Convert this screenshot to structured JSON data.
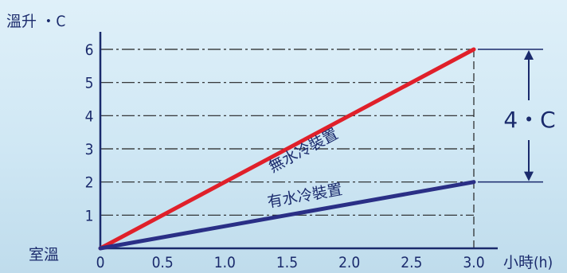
{
  "chart_data": {
    "type": "line",
    "ylabel": "溫升 ・C",
    "xlabel": "小時(h)",
    "y_zero_label": "室溫",
    "x_ticks": [
      "0",
      "0.5",
      "1.0",
      "1.5",
      "2.0",
      "2.5",
      "3.0"
    ],
    "y_ticks": [
      "1",
      "2",
      "3",
      "4",
      "5",
      "6"
    ],
    "xlim": [
      0,
      3
    ],
    "ylim": [
      0,
      6
    ],
    "grid": "dash-dot horizontal",
    "series": [
      {
        "name": "無水冷裝置",
        "color": "#e0202a",
        "x": [
          0,
          3.0
        ],
        "y": [
          0,
          6
        ]
      },
      {
        "name": "有水冷裝置",
        "color": "#2a2f86",
        "x": [
          0,
          3.0
        ],
        "y": [
          0,
          2
        ]
      }
    ],
    "annotation": {
      "text": "4・C",
      "from": 2,
      "to": 6,
      "at_x": 3.0
    }
  }
}
